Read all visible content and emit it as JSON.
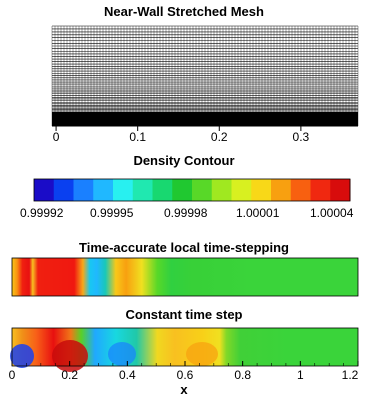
{
  "mesh_panel": {
    "title": "Near-Wall Stretched Mesh",
    "x_ticks": [
      "0",
      "0.1",
      "0.2",
      "0.3"
    ],
    "x_tick_values": [
      0,
      0.1,
      0.2,
      0.3
    ],
    "xlim": [
      -0.005,
      0.37
    ]
  },
  "legend": {
    "title": "Density Contour",
    "labels": [
      "0.99992",
      "0.99995",
      "0.99998",
      "1.00001",
      "1.00004"
    ],
    "colors": [
      "#1a0cc8",
      "#0a40f0",
      "#1a80ff",
      "#20b8ff",
      "#28f0f0",
      "#20e8b0",
      "#18d870",
      "#20c830",
      "#58d828",
      "#a0e820",
      "#d8f020",
      "#f8d818",
      "#f8a010",
      "#f86010",
      "#f02810",
      "#d80c0c"
    ]
  },
  "panel_local": {
    "title": "Time-accurate local time-stepping"
  },
  "panel_constant": {
    "title": "Constant time step",
    "x_ticks": [
      "0",
      "0.2",
      "0.4",
      "0.6",
      "0.8",
      "1",
      "1.2"
    ],
    "x_tick_values": [
      0,
      0.2,
      0.4,
      0.6,
      0.8,
      1.0,
      1.2
    ],
    "xlim": [
      0,
      1.2
    ],
    "xlabel": "x"
  },
  "chart_data": [
    {
      "type": "heatmap",
      "title": "Near-Wall Stretched Mesh",
      "xlim": [
        -0.005,
        0.37
      ],
      "x_ticks": [
        0,
        0.1,
        0.2,
        0.3
      ]
    },
    {
      "type": "heatmap",
      "title": "Time-accurate local time-stepping",
      "colorbar": {
        "title": "Density Contour",
        "ticks": [
          0.99992,
          0.99995,
          0.99998,
          1.00001,
          1.00004
        ]
      }
    },
    {
      "type": "heatmap",
      "title": "Constant time step",
      "xlabel": "x",
      "xlim": [
        0,
        1.2
      ],
      "x_ticks": [
        0,
        0.2,
        0.4,
        0.6,
        0.8,
        1,
        1.2
      ]
    }
  ]
}
